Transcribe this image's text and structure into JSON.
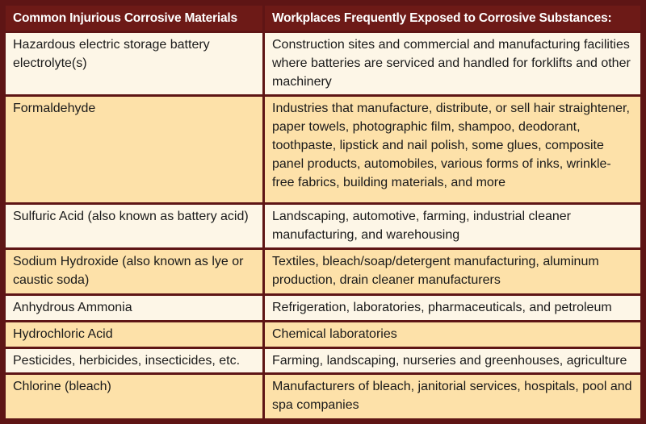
{
  "headers": [
    "Common Injurious Corrosive Materials",
    "Workplaces Frequently Exposed to Corrosive Substances:"
  ],
  "rows": [
    {
      "material": "Hazardous electric storage battery electrolyte(s)",
      "workplaces": "Construction sites and commercial and manufacturing facilities where batteries are serviced and handled for forklifts and other machinery"
    },
    {
      "material": "Formaldehyde",
      "workplaces": "Industries that manufacture, distribute, or sell hair straightener, paper towels, photographic film, shampoo, deodorant, toothpaste, lipstick and nail polish, some glues, composite panel products, automobiles, various forms of inks, wrinkle-free fabrics, building materials, and more"
    },
    {
      "material": "Sulfuric Acid (also known as battery acid)",
      "workplaces": "Landscaping, automotive, farming, industrial cleaner manufacturing, and warehousing"
    },
    {
      "material": "Sodium Hydroxide (also known as lye or caustic soda)",
      "workplaces": "Textiles, bleach/soap/detergent manufacturing, aluminum production, drain cleaner manufacturers"
    },
    {
      "material": "Anhydrous Ammonia",
      "workplaces": "Refrigeration, laboratories, pharmaceuticals, and petroleum"
    },
    {
      "material": "Hydrochloric Acid",
      "workplaces": "Chemical laboratories"
    },
    {
      "material": "Pesticides, herbicides, insecticides, etc.",
      "workplaces": "Farming, landscaping, nurseries and greenhouses, agriculture"
    },
    {
      "material": "Chlorine (bleach)",
      "workplaces": "Manufacturers of bleach, janitorial services, hospitals, pool and spa companies"
    }
  ],
  "colors": {
    "frame": "#5e1515",
    "header_bg": "#6d1a17",
    "row_light": "#fdf6e7",
    "row_dark": "#fde1a9"
  }
}
